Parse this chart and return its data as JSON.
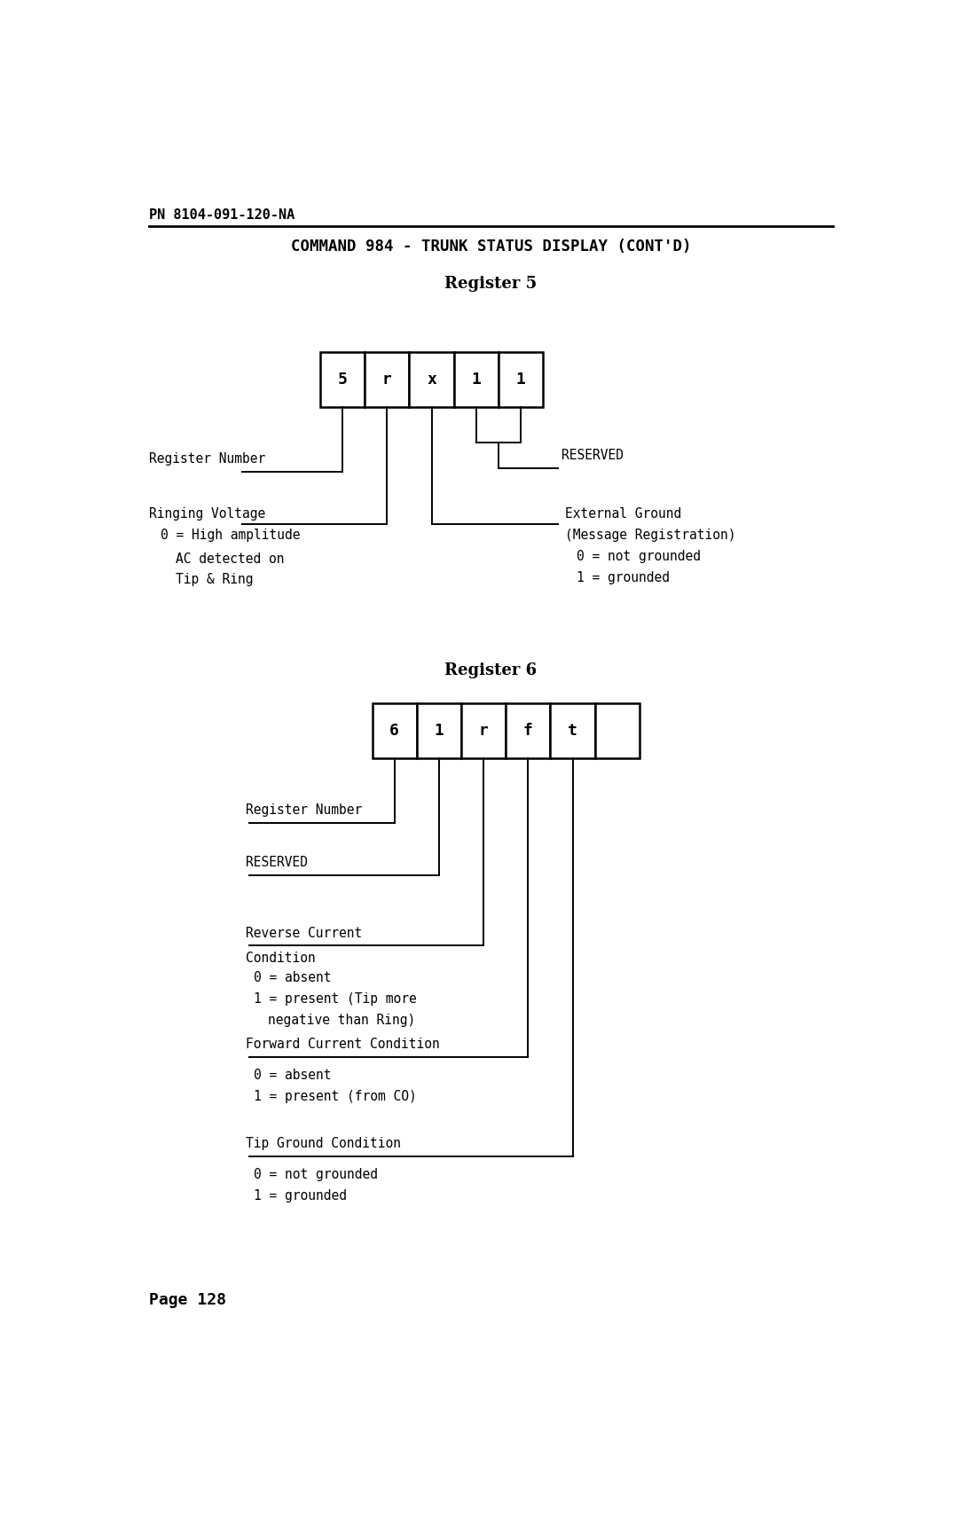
{
  "bg_color": "#ffffff",
  "text_color": "#000000",
  "header_pn": "PN 8104-091-120-NA",
  "title": "COMMAND 984 - TRUNK STATUS DISPLAY (CONT'D)",
  "reg5_label": "Register 5",
  "reg5_cells": [
    "5",
    "r",
    "x",
    "1",
    "1"
  ],
  "reg6_label": "Register 6",
  "reg6_cells": [
    "6",
    "1",
    "r",
    "f",
    "t",
    ""
  ],
  "page_label": "Page 128"
}
